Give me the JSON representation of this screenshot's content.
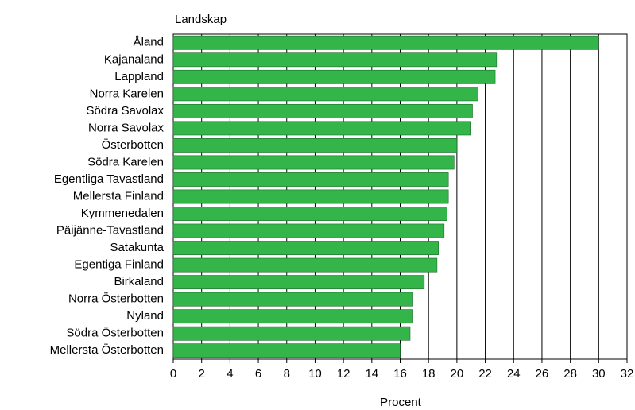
{
  "chart_data": {
    "type": "barh",
    "title": "Landskap",
    "xlabel": "Procent",
    "categories": [
      "Åland",
      "Kajanaland",
      "Lappland",
      "Norra Karelen",
      "Södra Savolax",
      "Norra Savolax",
      "Österbotten",
      "Södra Karelen",
      "Egentliga Tavastland",
      "Mellersta Finland",
      "Kymmenedalen",
      "Päijänne-Tavastland",
      "Satakunta",
      "Egentiga Finland",
      "Birkaland",
      "Norra Österbotten",
      "Nyland",
      "Södra Österbotten",
      "Mellersta Österbotten"
    ],
    "values": [
      30.0,
      22.8,
      22.7,
      21.5,
      21.1,
      21.0,
      20.0,
      19.8,
      19.4,
      19.4,
      19.3,
      19.1,
      18.7,
      18.6,
      17.7,
      16.9,
      16.9,
      16.7,
      16.0
    ],
    "color": "#33b54a",
    "xlim": [
      0,
      32
    ],
    "xticks": [
      0,
      2,
      4,
      6,
      8,
      10,
      12,
      14,
      16,
      18,
      20,
      22,
      24,
      26,
      28,
      30,
      32
    ],
    "grid": true
  }
}
